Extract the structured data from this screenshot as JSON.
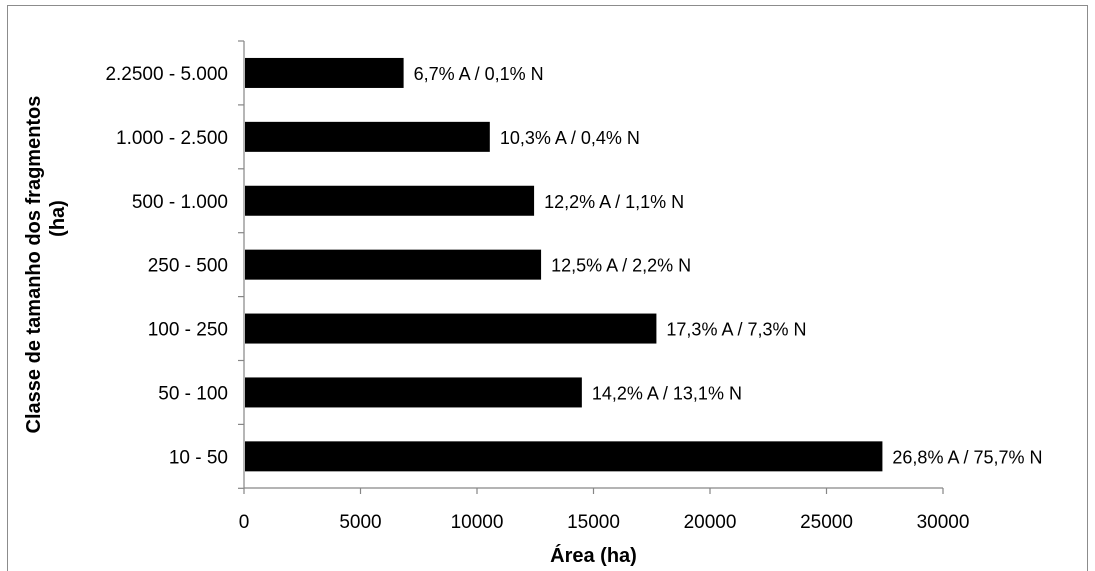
{
  "chart_data": {
    "type": "bar",
    "orientation": "horizontal",
    "categories": [
      "10 - 50",
      "50 - 100",
      "100 - 250",
      "250 - 500",
      "500 - 1.000",
      "1.000 - 2.500",
      "2.2500 - 5.000"
    ],
    "values": [
      27400,
      14500,
      17700,
      12750,
      12450,
      10550,
      6850
    ],
    "data_labels": [
      "26,8% A / 75,7% N",
      "14,2% A / 13,1% N",
      "17,3% A / 7,3% N",
      "12,5% A / 2,2% N",
      "12,2% A / 1,1% N",
      "10,3% A / 0,4% N",
      "6,7% A / 0,1% N"
    ],
    "xlabel": "Área (ha)",
    "ylabel_lines": [
      "Classe de tamanho dos fragmentos",
      "(ha)"
    ],
    "xlim": [
      0,
      30000
    ],
    "xticks": [
      0,
      5000,
      10000,
      15000,
      20000,
      25000,
      30000
    ],
    "xtick_labels": [
      "0",
      "5000",
      "10000",
      "15000",
      "20000",
      "25000",
      "30000"
    ],
    "grid": false,
    "legend": "none",
    "bar_color": "#000000"
  }
}
